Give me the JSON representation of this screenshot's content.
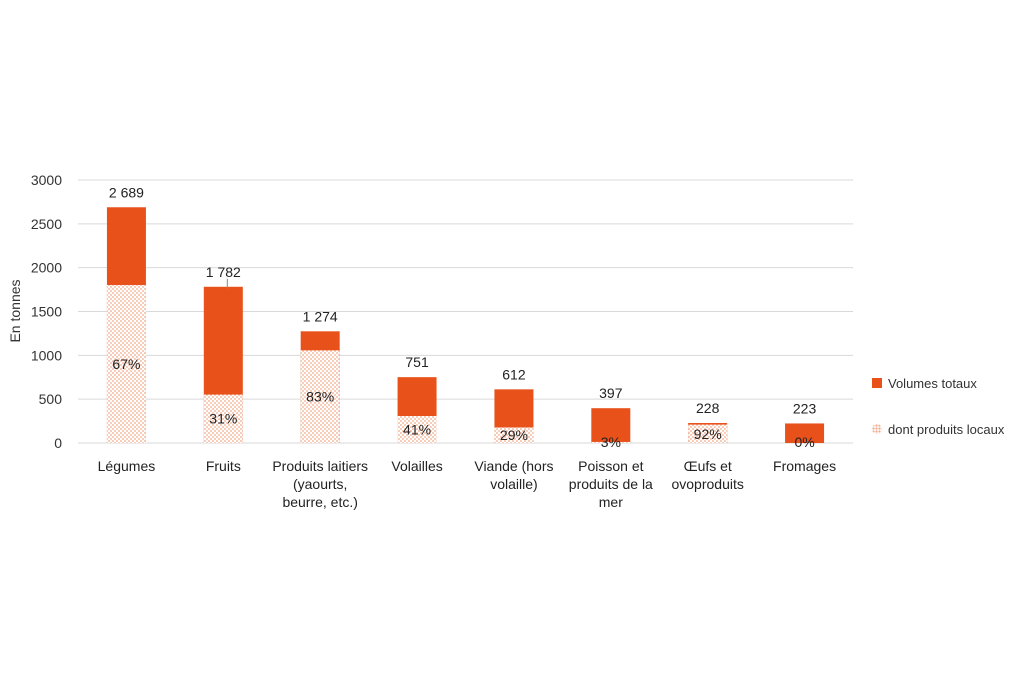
{
  "chart_data": {
    "type": "bar",
    "ylabel": "En tonnes",
    "ylim": [
      0,
      3000
    ],
    "yticks": [
      0,
      500,
      1000,
      1500,
      2000,
      2500,
      3000
    ],
    "ytick_labels": [
      "0",
      "500",
      "1000",
      "1500",
      "2000",
      "2500",
      "3000"
    ],
    "grid": true,
    "legend_position": "right",
    "colors": {
      "total": "#E8511A",
      "local": "#F2A98A"
    },
    "categories": [
      [
        "Légumes"
      ],
      [
        "Fruits"
      ],
      [
        "Produits laitiers",
        "(yaourts,",
        "beurre, etc.)"
      ],
      [
        "Volailles"
      ],
      [
        "Viande (hors",
        "volaille)"
      ],
      [
        "Poisson et",
        "produits de la",
        "mer"
      ],
      [
        "Œufs et",
        "ovoproduits"
      ],
      [
        "Fromages"
      ]
    ],
    "series": [
      {
        "name": "Volumes totaux",
        "values": [
          2689,
          1782,
          1274,
          751,
          612,
          397,
          228,
          223
        ]
      },
      {
        "name": "dont produits locaux",
        "values": [
          1802,
          552,
          1057,
          308,
          177,
          12,
          210,
          0
        ]
      }
    ],
    "value_labels": [
      "2 689",
      "1 782",
      "1 274",
      "751",
      "612",
      "397",
      "228",
      "223"
    ],
    "local_share_labels": [
      "67%",
      "31%",
      "83%",
      "41%",
      "29%",
      "3%",
      "92%",
      "0%"
    ],
    "legend": [
      "Volumes totaux",
      "dont produits locaux"
    ]
  }
}
